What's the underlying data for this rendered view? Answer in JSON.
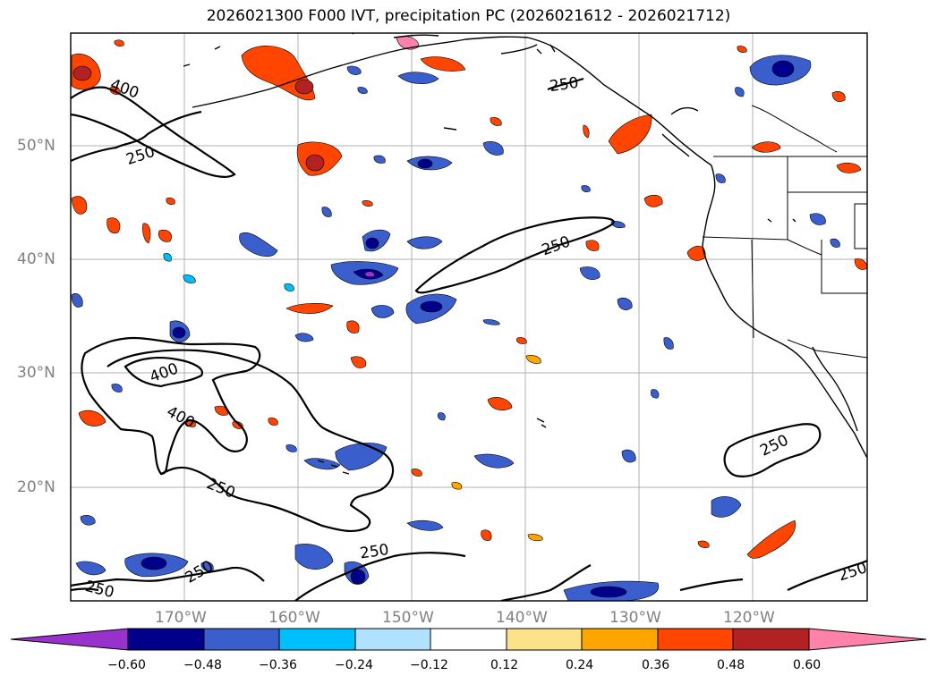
{
  "title": "2026021300 F000 IVT, precipitation PC (2026021612 - 2026021712)",
  "lat_labels": [
    "50°N",
    "40°N",
    "30°N",
    "20°N"
  ],
  "lon_labels": [
    "170°W",
    "160°W",
    "150°W",
    "140°W",
    "130°W",
    "120°W"
  ],
  "contour_labels": [
    "400",
    "250",
    "250",
    "400",
    "400",
    "250",
    "250",
    "250",
    "250",
    "250",
    "250",
    "250"
  ],
  "colorbar": {
    "ticks": [
      "−0.60",
      "−0.48",
      "−0.36",
      "−0.24",
      "−0.12",
      "0.12",
      "0.24",
      "0.36",
      "0.48",
      "0.60"
    ],
    "colors": [
      "#9932cc",
      "#00008b",
      "#3a5fcd",
      "#00bfff",
      "#b0e2ff",
      "#ffffff",
      "#fce38a",
      "#ffa500",
      "#ff4500",
      "#b22222",
      "#ff82ab"
    ]
  }
}
